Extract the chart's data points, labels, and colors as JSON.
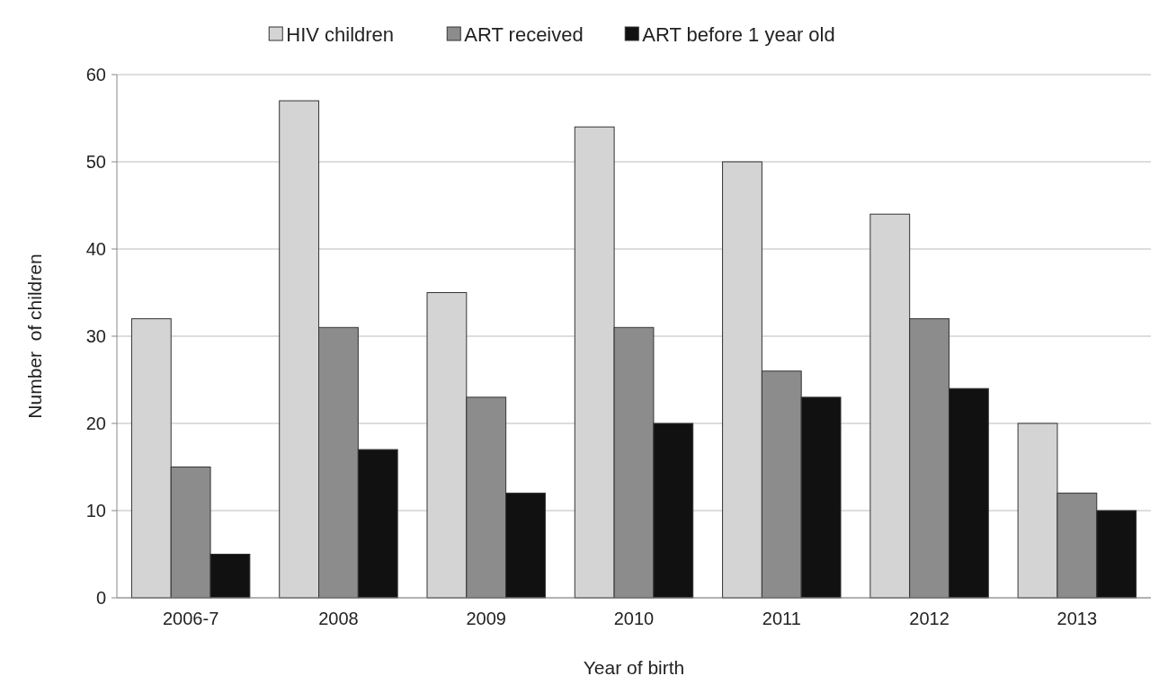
{
  "chart_data": {
    "type": "bar",
    "xlabel": "Year of birth",
    "ylabel": "Number  of children",
    "categories": [
      "2006-7",
      "2008",
      "2009",
      "2010",
      "2011",
      "2012",
      "2013"
    ],
    "series": [
      {
        "name": "HIV children",
        "color": "#d4d4d4",
        "values": [
          32,
          57,
          35,
          54,
          50,
          44,
          20
        ]
      },
      {
        "name": "ART received",
        "color": "#8c8c8c",
        "values": [
          15,
          31,
          23,
          31,
          26,
          32,
          12
        ]
      },
      {
        "name": "ART before 1 year old",
        "color": "#111111",
        "values": [
          5,
          17,
          12,
          20,
          23,
          24,
          10
        ]
      }
    ],
    "ylim": [
      0,
      60
    ],
    "yticks": [
      0,
      10,
      20,
      30,
      40,
      50,
      60
    ],
    "grid": "y",
    "legend": "top"
  }
}
